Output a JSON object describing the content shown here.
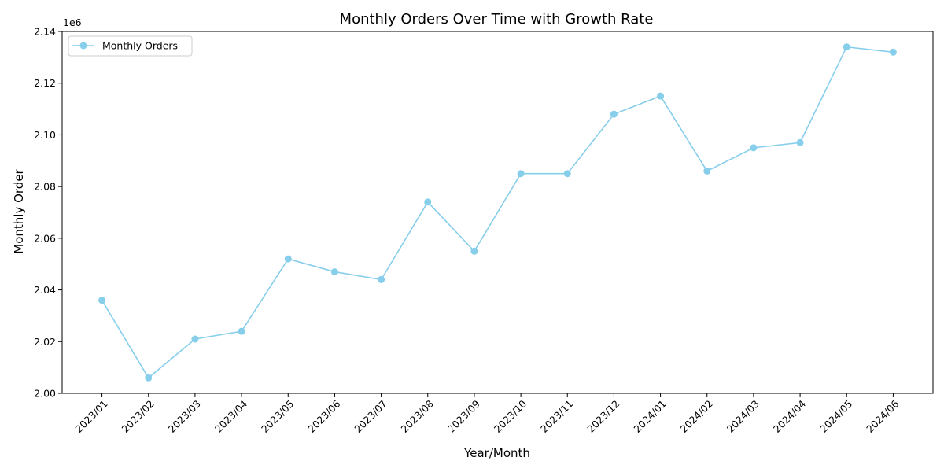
{
  "chart_data": {
    "type": "line",
    "title": "Monthly Orders Over Time with Growth Rate",
    "xlabel": "Year/Month",
    "ylabel": "Monthly Order",
    "y_offset_label": "1e6",
    "y_scale_note": "values x 1e6",
    "categories": [
      "2023/01",
      "2023/02",
      "2023/03",
      "2023/04",
      "2023/05",
      "2023/06",
      "2023/07",
      "2023/08",
      "2023/09",
      "2023/10",
      "2023/11",
      "2023/12",
      "2024/01",
      "2024/02",
      "2024/03",
      "2024/04",
      "2024/05",
      "2024/06"
    ],
    "series": [
      {
        "name": "Monthly Orders",
        "color": "#87ceeb",
        "values": [
          2036000,
          2006000,
          2021000,
          2024000,
          2052000,
          2047000,
          2044000,
          2074000,
          2055000,
          2085000,
          2085000,
          2108000,
          2115000,
          2086000,
          2095000,
          2097000,
          2134000,
          2132000
        ]
      }
    ],
    "ylim": [
      2000000,
      2140000
    ],
    "yticks": [
      2000000,
      2020000,
      2040000,
      2060000,
      2080000,
      2100000,
      2120000,
      2140000
    ],
    "ytick_labels": [
      "2.00",
      "2.02",
      "2.04",
      "2.06",
      "2.08",
      "2.10",
      "2.12",
      "2.14"
    ],
    "grid": false,
    "legend_position": "upper-left"
  }
}
